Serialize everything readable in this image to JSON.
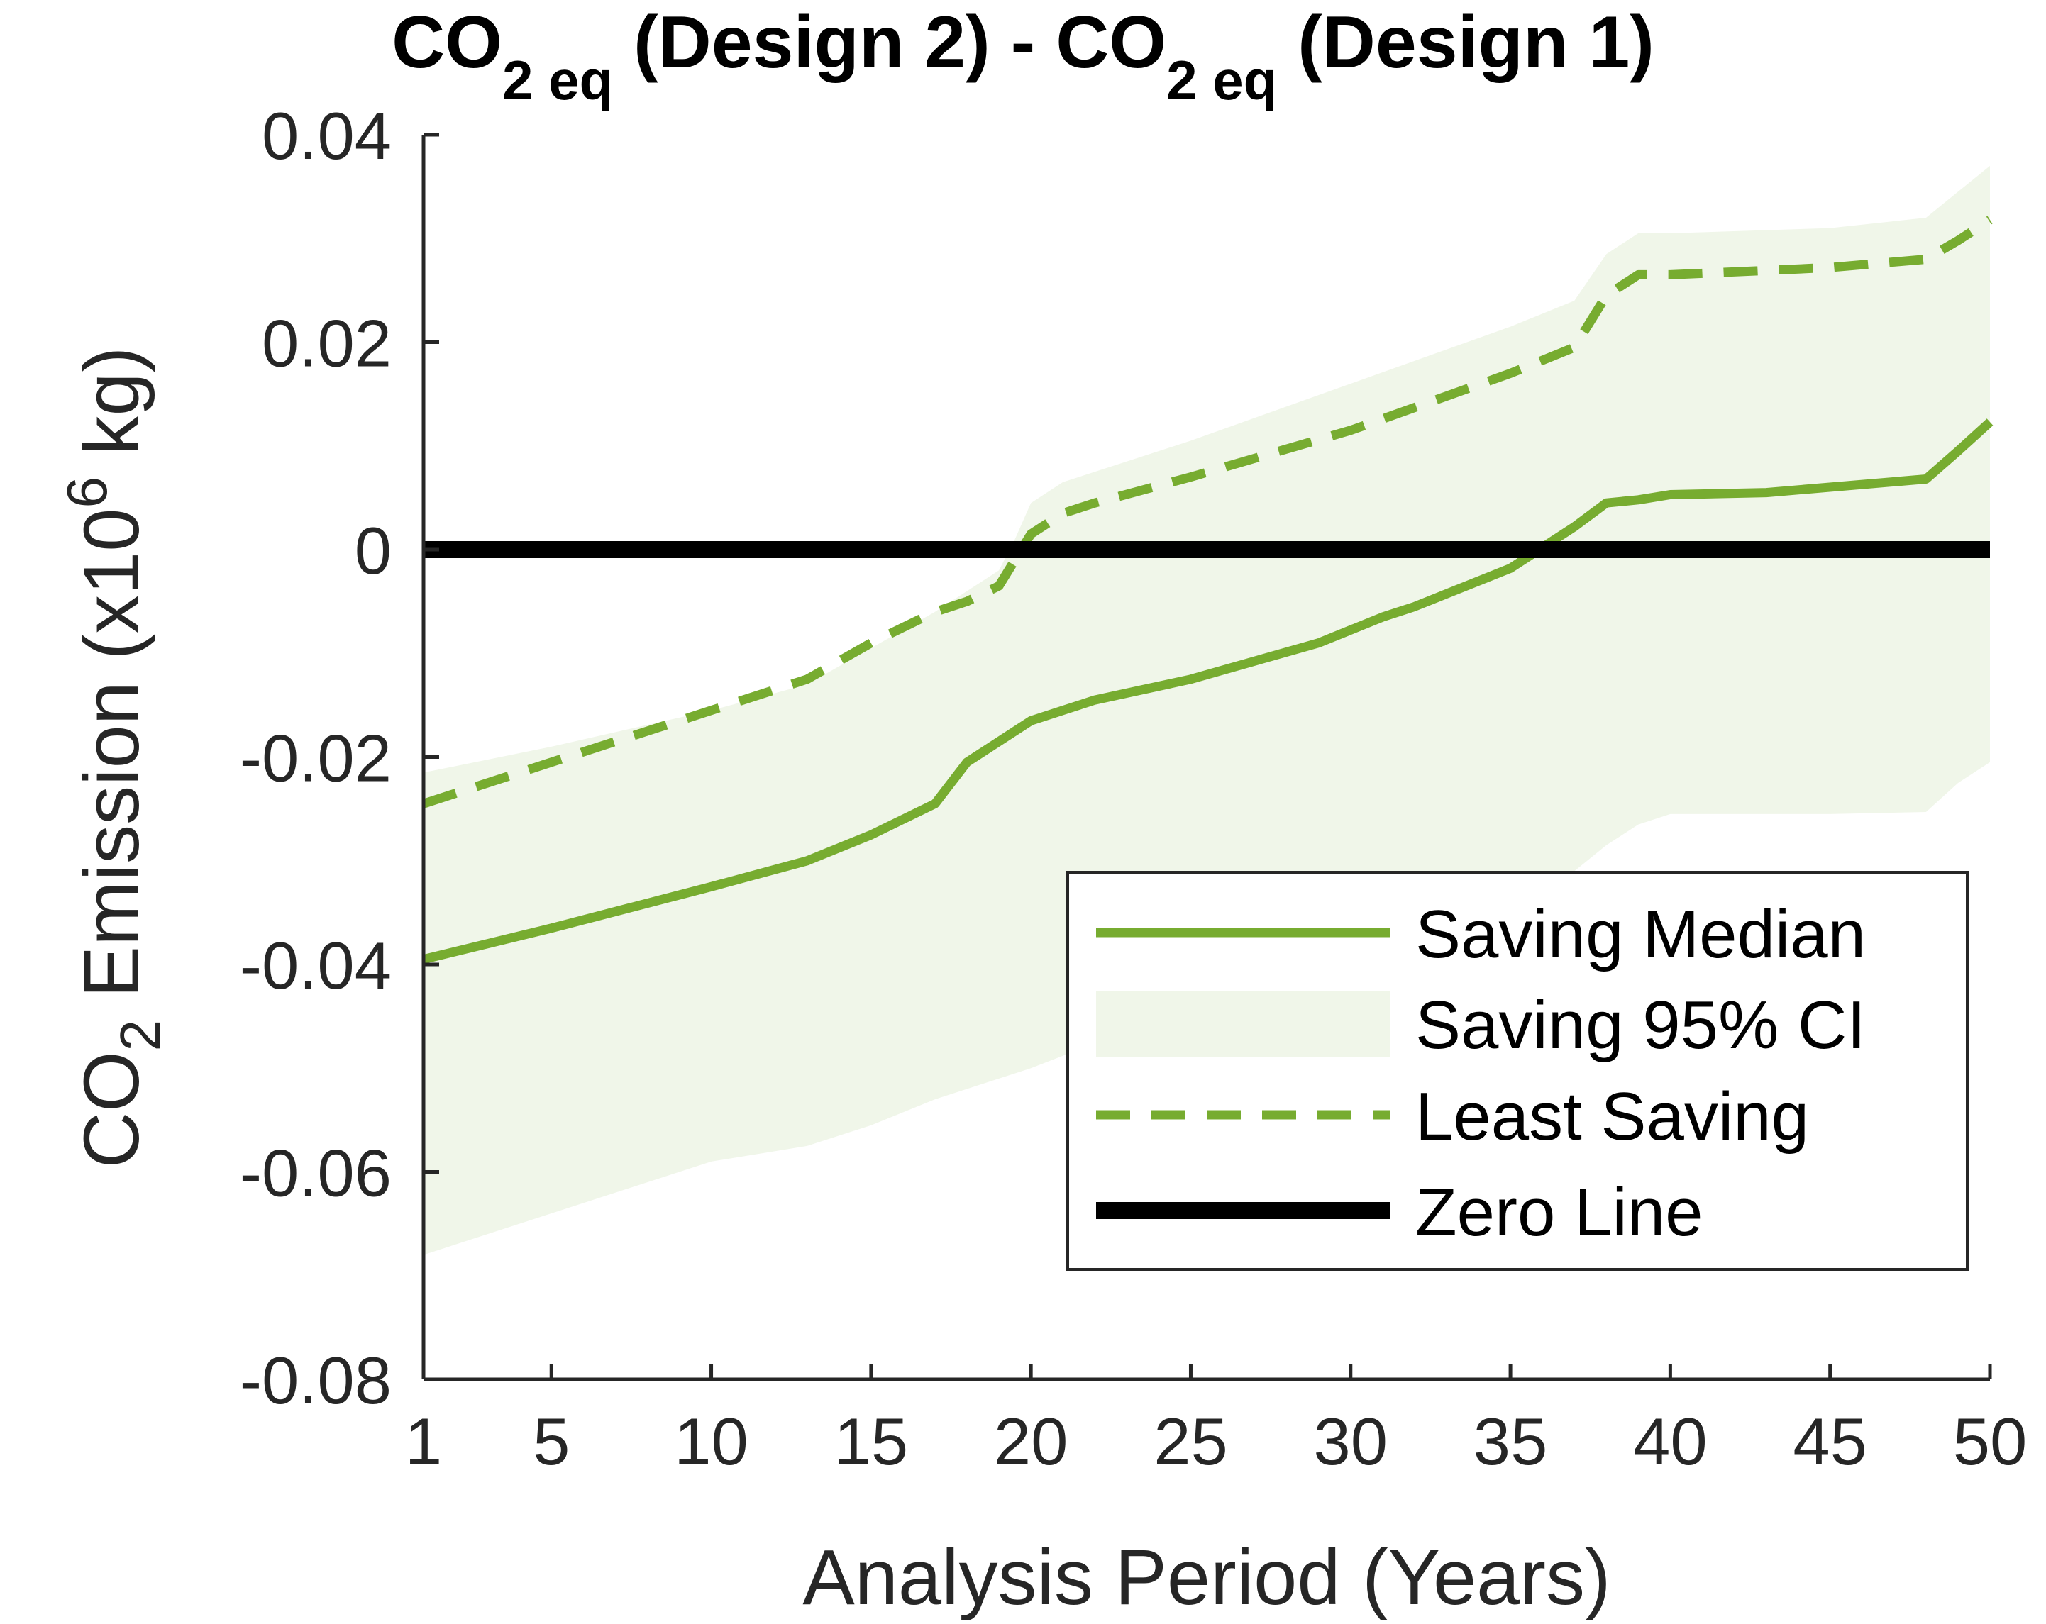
{
  "chart_data": {
    "type": "line",
    "title": {
      "main": "CO",
      "sub1": "2 eq",
      "mid": " (Design 2) - CO",
      "sub2": "2 eq",
      "end": " (Design 1)"
    },
    "xlabel": "Analysis Period (Years)",
    "ylabel": {
      "pre": "CO",
      "sub": "2",
      "mid": " Emission (x10",
      "sup": "6",
      "post": " kg)"
    },
    "xlim": [
      1,
      50
    ],
    "ylim": [
      -0.08,
      0.04
    ],
    "xticks": [
      1,
      5,
      10,
      15,
      20,
      25,
      30,
      35,
      40,
      45,
      50
    ],
    "xtick_labels": [
      "1",
      "5",
      "10",
      "15",
      "20",
      "25",
      "30",
      "35",
      "40",
      "45",
      "50"
    ],
    "yticks": [
      -0.08,
      -0.06,
      -0.04,
      -0.02,
      0,
      0.02,
      0.04
    ],
    "ytick_labels": [
      "-0.08",
      "-0.06",
      "-0.04",
      "-0.02",
      "0",
      "0.02",
      "0.04"
    ],
    "grid": false,
    "legend_position": "bottom-right",
    "colors": {
      "median": "#77ac30",
      "ci_fill": "#f0f6e9",
      "least": "#77ac30",
      "zero": "#000000"
    },
    "series": [
      {
        "name": "Saving Median",
        "style": "solid",
        "x": [
          1,
          5,
          10,
          13,
          15,
          17,
          18,
          19,
          20,
          21,
          22,
          25,
          29,
          31,
          32,
          35,
          37,
          38,
          39,
          40,
          43,
          48,
          49,
          50
        ],
        "y": [
          -0.0395,
          -0.0365,
          -0.0325,
          -0.03,
          -0.0275,
          -0.0245,
          -0.0205,
          -0.0185,
          -0.0165,
          -0.0155,
          -0.0145,
          -0.0125,
          -0.009,
          -0.0065,
          -0.0055,
          -0.0018,
          0.0022,
          0.0045,
          0.0048,
          0.0053,
          0.0055,
          0.0068,
          0.0095,
          0.0123
        ]
      },
      {
        "name": "Saving 95% CI",
        "style": "band",
        "x": [
          1,
          5,
          10,
          13,
          15,
          17,
          18,
          19,
          19.5,
          20,
          21,
          22,
          25,
          30,
          35,
          37,
          38,
          39,
          40,
          45,
          48,
          49,
          50
        ],
        "upper": [
          -0.0215,
          -0.019,
          -0.0155,
          -0.013,
          -0.0095,
          -0.006,
          -0.004,
          -0.002,
          0.001,
          0.0045,
          0.0065,
          0.0075,
          0.0105,
          0.016,
          0.0215,
          0.024,
          0.0285,
          0.0305,
          0.0305,
          0.031,
          0.032,
          0.0345,
          0.037
        ],
        "lower": [
          -0.068,
          -0.064,
          -0.059,
          -0.0575,
          -0.0555,
          -0.053,
          -0.052,
          -0.051,
          -0.0505,
          -0.05,
          -0.0488,
          -0.0475,
          -0.0435,
          -0.0385,
          -0.0345,
          -0.031,
          -0.0285,
          -0.0265,
          -0.0255,
          -0.0255,
          -0.0253,
          -0.0225,
          -0.0205
        ]
      },
      {
        "name": "Least Saving",
        "style": "dashed",
        "x": [
          1,
          5,
          10,
          13,
          15,
          17,
          18,
          19,
          20,
          21,
          22,
          25,
          30,
          35,
          37,
          38,
          39,
          40,
          45,
          48,
          49,
          50
        ],
        "y": [
          -0.0245,
          -0.0205,
          -0.0155,
          -0.0125,
          -0.009,
          -0.006,
          -0.005,
          -0.0035,
          0.0015,
          0.0035,
          0.0045,
          0.007,
          0.0115,
          0.017,
          0.0195,
          0.0245,
          0.0265,
          0.0265,
          0.0272,
          0.028,
          0.0298,
          0.0318
        ]
      },
      {
        "name": "Zero Line",
        "style": "solid-thick",
        "x": [
          1,
          50
        ],
        "y": [
          0,
          0
        ]
      }
    ]
  }
}
